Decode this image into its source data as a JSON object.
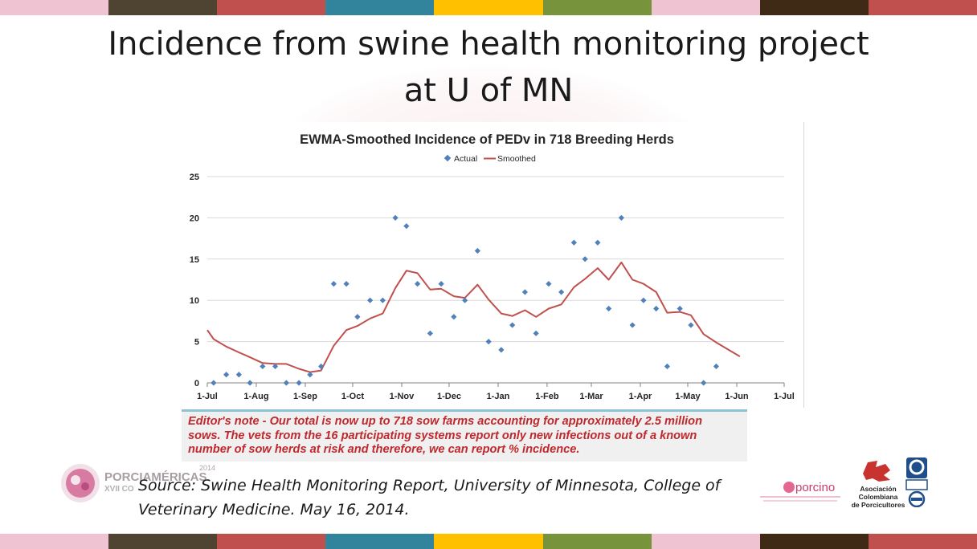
{
  "slide": {
    "title_line1": "Incidence from swine health monitoring project",
    "title_line2": "at U of MN",
    "stripe_colors": [
      "#f0c3d2",
      "#4e4431",
      "#c0504d",
      "#31849b",
      "#ffc000",
      "#77933c",
      "#f0c3d2",
      "#3f2a16",
      "#c0504d"
    ],
    "editor_note": {
      "line1": "Editor's note - Our total is now up to 718 sow farms accounting for approximately 2.5 million",
      "line2": "sows. The vets from the 16 participating systems report only new infections out of a known",
      "line3": "number of sow herds at risk and therefore, we can report % incidence."
    },
    "source_line1": "Source: Swine Health Monitoring Report, University of Minnesota, College of",
    "source_line2": "Veterinary Medicine. May 16, 2014.",
    "logos": {
      "porciamericas_name": "PORCIAMÉRICAS",
      "porciamericas_year": "2014",
      "porciamericas_sub": "XVII CO",
      "porcino_name": "porcino",
      "asociacion_line1": "Asociación",
      "asociacion_line2": "Colombiana",
      "asociacion_line3": "de Porcicultores"
    }
  },
  "chart_data": {
    "type": "scatter",
    "title": "EWMA-Smoothed Incidence of PEDv in 718 Breeding Herds",
    "legend": {
      "placement": "top-center",
      "entries": [
        "Actual",
        "Smoothed"
      ]
    },
    "colors": {
      "actual": "#4f81bd",
      "smoothed": "#c0504d",
      "grid": "#d9d9d9",
      "axis": "#808080"
    },
    "x_tick_labels": [
      "1-Jul",
      "1-Aug",
      "1-Sep",
      "1-Oct",
      "1-Nov",
      "1-Dec",
      "1-Jan",
      "1-Feb",
      "1-Mar",
      "1-Apr",
      "1-May",
      "1-Jun",
      "1-Jul"
    ],
    "x_tick_days": [
      0,
      31,
      62,
      92,
      123,
      153,
      184,
      215,
      243,
      274,
      304,
      335,
      365
    ],
    "xlim": [
      0,
      365
    ],
    "ylim": [
      0,
      25
    ],
    "y_ticks": [
      0,
      5,
      10,
      15,
      20,
      25
    ],
    "grid": true,
    "series": [
      {
        "name": "Actual",
        "type": "scatter",
        "x": [
          4,
          12,
          20,
          27,
          35,
          43,
          50,
          58,
          65,
          72,
          80,
          88,
          95,
          103,
          111,
          119,
          126,
          133,
          141,
          148,
          156,
          163,
          171,
          178,
          186,
          193,
          201,
          208,
          216,
          224,
          232,
          239,
          247,
          254,
          262,
          269,
          276,
          284,
          291,
          299,
          306,
          314,
          322
        ],
        "y": [
          0,
          1,
          1,
          0,
          2,
          2,
          0,
          0,
          1,
          2,
          12,
          12,
          8,
          10,
          10,
          20,
          19,
          12,
          6,
          12,
          8,
          10,
          16,
          5,
          4,
          7,
          11,
          6,
          12,
          11,
          17,
          15,
          17,
          9,
          20,
          7,
          10,
          9,
          2,
          9,
          7,
          0,
          2
        ]
      },
      {
        "name": "Smoothed",
        "type": "line",
        "x": [
          0,
          4,
          12,
          20,
          27,
          35,
          43,
          50,
          58,
          65,
          72,
          80,
          88,
          95,
          103,
          111,
          119,
          126,
          133,
          141,
          148,
          156,
          163,
          171,
          178,
          186,
          193,
          201,
          208,
          216,
          224,
          232,
          239,
          247,
          254,
          262,
          269,
          276,
          284,
          291,
          299,
          306,
          314,
          322,
          329,
          337
        ],
        "y": [
          6.4,
          5.3,
          4.4,
          3.7,
          3.1,
          2.4,
          2.3,
          2.3,
          1.7,
          1.3,
          1.5,
          4.5,
          6.4,
          6.9,
          7.8,
          8.4,
          11.5,
          13.6,
          13.3,
          11.3,
          11.4,
          10.5,
          10.3,
          11.9,
          10.1,
          8.4,
          8.1,
          8.8,
          8.0,
          9.0,
          9.5,
          11.6,
          12.6,
          13.9,
          12.5,
          14.6,
          12.5,
          12.0,
          11.0,
          8.5,
          8.6,
          8.2,
          5.9,
          4.9,
          4.1,
          3.2
        ]
      }
    ]
  }
}
